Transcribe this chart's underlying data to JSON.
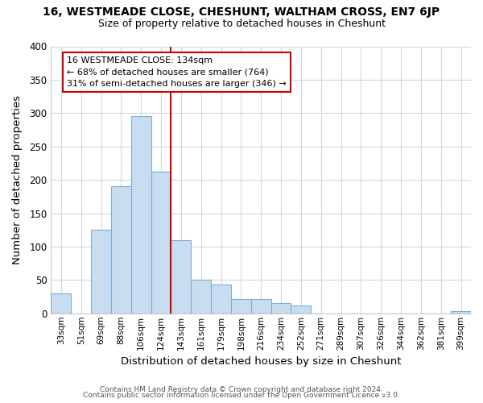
{
  "title": "16, WESTMEADE CLOSE, CHESHUNT, WALTHAM CROSS, EN7 6JP",
  "subtitle": "Size of property relative to detached houses in Cheshunt",
  "xlabel": "Distribution of detached houses by size in Cheshunt",
  "ylabel": "Number of detached properties",
  "bar_color": "#c8ddf0",
  "bar_edge_color": "#7ab0d4",
  "categories": [
    "33sqm",
    "51sqm",
    "69sqm",
    "88sqm",
    "106sqm",
    "124sqm",
    "143sqm",
    "161sqm",
    "179sqm",
    "198sqm",
    "216sqm",
    "234sqm",
    "252sqm",
    "271sqm",
    "289sqm",
    "307sqm",
    "326sqm",
    "344sqm",
    "362sqm",
    "381sqm",
    "399sqm"
  ],
  "values": [
    30,
    0,
    125,
    190,
    295,
    212,
    110,
    50,
    43,
    22,
    22,
    16,
    12,
    0,
    0,
    0,
    0,
    0,
    0,
    0,
    3
  ],
  "ylim": [
    0,
    400
  ],
  "yticks": [
    0,
    50,
    100,
    150,
    200,
    250,
    300,
    350,
    400
  ],
  "vline_color": "#cc0000",
  "vline_position": 6,
  "annotation_title": "16 WESTMEADE CLOSE: 134sqm",
  "annotation_line1": "← 68% of detached houses are smaller (764)",
  "annotation_line2": "31% of semi-detached houses are larger (346) →",
  "footer1": "Contains HM Land Registry data © Crown copyright and database right 2024.",
  "footer2": "Contains public sector information licensed under the Open Government Licence v3.0.",
  "background_color": "#ffffff",
  "grid_color": "#d0d8e0"
}
